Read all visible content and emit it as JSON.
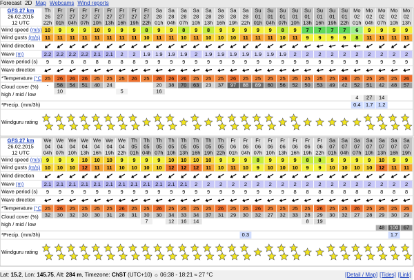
{
  "nav": {
    "items": [
      "Forecast",
      "2D",
      "Map",
      "Webcams",
      "Wind reports"
    ]
  },
  "labels": {
    "speed": {
      "text": "Wind speed ",
      "unit": "(m/s)"
    },
    "gusts": {
      "text": "Wind gusts ",
      "unit": "(m/s)"
    },
    "wind_dir": {
      "text": "Wind direction"
    },
    "wave": {
      "text": "Wave ",
      "unit": "(m)"
    },
    "period": {
      "text": "Wave period (s)"
    },
    "wave_dir": {
      "text": "Wave direction"
    },
    "temp": {
      "text": "*Temperature ",
      "unit": "(°C)"
    },
    "cloud": {
      "text": "Cloud cover (%)"
    },
    "cloud_sub": {
      "text": "high / mid / low"
    },
    "precip": {
      "text": "*Precip. (mm/3h)"
    },
    "rating": {
      "text": "Windguru rating"
    }
  },
  "speed_colors": {
    "6": "#9cf08c",
    "7": "#5fd85a",
    "8": "#c6ef3c",
    "9": "#f4f23e",
    "10": "#f8d436",
    "11": "#f7a533",
    "12": "#f27a2c"
  },
  "temp_colors": {
    "25": "#f2873e",
    "26": "#ee6f2c"
  },
  "tables": [
    {
      "model": "GFS 27 km",
      "date": "26.02.2015",
      "run": "12 UTC",
      "days": [
        "Th",
        "Fr",
        "Fr",
        "Fr",
        "Fr",
        "Fr",
        "Fr",
        "Fr",
        "Fr",
        "Sa",
        "Sa",
        "Sa",
        "Sa",
        "Sa",
        "Sa",
        "Sa",
        "Sa",
        "Su",
        "Su",
        "Su",
        "Su",
        "Su",
        "Su",
        "Su",
        "Su",
        "Mo",
        "Mo",
        "Mo",
        "Mo",
        "Mo"
      ],
      "dates": [
        "26",
        "27",
        "27",
        "27",
        "27",
        "27",
        "27",
        "27",
        "27",
        "28",
        "28",
        "28",
        "28",
        "28",
        "28",
        "28",
        "28",
        "01",
        "01",
        "01",
        "01",
        "01",
        "01",
        "01",
        "01",
        "02",
        "02",
        "02",
        "02",
        "02"
      ],
      "hours": [
        "22h",
        "01h",
        "04h",
        "07h",
        "10h",
        "13h",
        "16h",
        "19h",
        "22h",
        "01h",
        "04h",
        "07h",
        "10h",
        "13h",
        "16h",
        "19h",
        "22h",
        "01h",
        "04h",
        "07h",
        "10h",
        "13h",
        "16h",
        "19h",
        "22h",
        "01h",
        "04h",
        "07h",
        "10h",
        "13h"
      ],
      "speed": [
        10,
        9,
        9,
        9,
        10,
        9,
        9,
        9,
        8,
        9,
        9,
        8,
        9,
        8,
        9,
        9,
        9,
        9,
        9,
        8,
        9,
        7,
        7,
        7,
        7,
        6,
        9,
        9,
        9,
        9
      ],
      "gusts": [
        11,
        11,
        11,
        11,
        11,
        11,
        11,
        11,
        10,
        11,
        11,
        10,
        11,
        10,
        10,
        10,
        11,
        11,
        11,
        10,
        11,
        9,
        9,
        9,
        9,
        8,
        11,
        11,
        11,
        11
      ],
      "wind_dir": [
        55,
        55,
        60,
        60,
        55,
        55,
        60,
        60,
        65,
        60,
        60,
        65,
        60,
        65,
        60,
        60,
        55,
        55,
        60,
        65,
        60,
        70,
        75,
        75,
        80,
        85,
        60,
        55,
        55,
        60
      ],
      "wave": [
        2.2,
        2.2,
        2.2,
        2.2,
        2.1,
        2.1,
        2,
        2,
        1.9,
        1.9,
        1.9,
        1.9,
        2,
        1.9,
        1.9,
        1.9,
        1.9,
        1.9,
        1.9,
        1.9,
        2,
        2,
        2,
        2,
        2,
        2,
        2,
        2,
        2,
        2
      ],
      "period": [
        9,
        9,
        8,
        8,
        8,
        8,
        8,
        8,
        9,
        9,
        9,
        9,
        9,
        9,
        9,
        9,
        9,
        9,
        9,
        9,
        9,
        9,
        9,
        9,
        9,
        9,
        9,
        9,
        9,
        9
      ],
      "wave_dir": [
        70,
        70,
        70,
        75,
        75,
        75,
        75,
        75,
        80,
        80,
        80,
        80,
        80,
        80,
        80,
        80,
        80,
        80,
        80,
        80,
        80,
        80,
        80,
        80,
        80,
        80,
        80,
        80,
        80,
        80
      ],
      "temp": [
        25,
        26,
        26,
        26,
        25,
        25,
        25,
        26,
        25,
        26,
        26,
        26,
        25,
        25,
        25,
        26,
        25,
        25,
        25,
        25,
        25,
        25,
        25,
        25,
        26,
        25,
        25,
        25,
        25,
        26
      ],
      "cloud_high": [
        "-",
        58,
        54,
        51,
        40,
        24,
        null,
        null,
        null,
        20,
        38,
        70,
        63,
        23,
        37,
        97,
        88,
        89,
        60,
        56,
        52,
        50,
        53,
        49,
        42,
        52,
        51,
        42,
        48,
        57
      ],
      "cloud_mid": [
        null,
        10,
        null,
        null,
        null,
        null,
        5,
        null,
        null,
        16,
        null,
        null,
        null,
        null,
        null,
        null,
        null,
        null,
        null,
        null,
        null,
        null,
        null,
        null,
        null,
        null,
        null,
        null,
        null,
        null
      ],
      "cloud_low": [
        null,
        null,
        null,
        null,
        null,
        null,
        null,
        null,
        null,
        null,
        null,
        null,
        null,
        null,
        null,
        null,
        null,
        null,
        null,
        null,
        null,
        null,
        null,
        null,
        null,
        4,
        27,
        14,
        null,
        null
      ],
      "precip": [
        null,
        null,
        null,
        null,
        null,
        null,
        null,
        null,
        null,
        null,
        null,
        null,
        null,
        null,
        null,
        null,
        null,
        null,
        null,
        null,
        null,
        null,
        null,
        null,
        null,
        0.4,
        1.7,
        1.2,
        null,
        null
      ],
      "rating": [
        2,
        2,
        2,
        2,
        2,
        2,
        2,
        2,
        1,
        2,
        2,
        1,
        2,
        1,
        2,
        2,
        2,
        2,
        2,
        1,
        2,
        1,
        1,
        1,
        1,
        1,
        2,
        2,
        2,
        2
      ]
    },
    {
      "model": "GFS 27 km",
      "date": "26.02.2015",
      "run": "12 UTC",
      "days": [
        "We",
        "We",
        "We",
        "We",
        "We",
        "We",
        "We",
        "Th",
        "Th",
        "Th",
        "Th",
        "Th",
        "Th",
        "Th",
        "Th",
        "Fr",
        "Fr",
        "Fr",
        "Fr",
        "Fr",
        "Fr",
        "Fr",
        "Fr",
        "Sa",
        "Sa",
        "Sa",
        "Sa",
        "Sa",
        "Sa",
        "Sa"
      ],
      "dates": [
        "04",
        "04",
        "04",
        "04",
        "04",
        "04",
        "04",
        "05",
        "05",
        "05",
        "05",
        "05",
        "05",
        "05",
        "05",
        "06",
        "06",
        "06",
        "06",
        "06",
        "06",
        "06",
        "06",
        "07",
        "07",
        "07",
        "07",
        "07",
        "07",
        "07"
      ],
      "hours": [
        "04h",
        "07h",
        "10h",
        "13h",
        "16h",
        "19h",
        "22h",
        "01h",
        "04h",
        "07h",
        "10h",
        "13h",
        "16h",
        "19h",
        "22h",
        "01h",
        "04h",
        "07h",
        "10h",
        "13h",
        "16h",
        "19h",
        "22h",
        "01h",
        "04h",
        "07h",
        "10h",
        "13h",
        "16h",
        "19h"
      ],
      "speed": [
        9,
        9,
        9,
        10,
        10,
        10,
        9,
        9,
        9,
        9,
        10,
        10,
        10,
        10,
        9,
        9,
        9,
        8,
        9,
        9,
        9,
        8,
        8,
        9,
        9,
        9,
        9,
        10,
        9,
        9
      ],
      "gusts": [
        10,
        10,
        10,
        12,
        11,
        11,
        10,
        10,
        10,
        10,
        12,
        12,
        12,
        11,
        10,
        11,
        10,
        9,
        10,
        10,
        10,
        9,
        9,
        10,
        10,
        10,
        10,
        12,
        11,
        11
      ],
      "wind_dir": [
        60,
        60,
        60,
        55,
        55,
        55,
        60,
        60,
        60,
        60,
        55,
        55,
        55,
        60,
        60,
        60,
        60,
        65,
        60,
        60,
        60,
        65,
        65,
        60,
        60,
        60,
        60,
        55,
        60,
        60
      ],
      "wave": [
        2.1,
        2.1,
        2.1,
        2.1,
        2.1,
        2.1,
        2.1,
        2.1,
        2.1,
        2.1,
        2.1,
        2.1,
        2,
        2,
        2,
        2,
        2,
        2,
        2,
        2,
        2,
        2,
        2,
        2,
        2,
        2,
        2,
        2,
        2,
        2
      ],
      "period": [
        9,
        9,
        9,
        9,
        9,
        9,
        9,
        9,
        9,
        9,
        9,
        9,
        9,
        9,
        9,
        9,
        9,
        9,
        9,
        9,
        8,
        8,
        8,
        8,
        8,
        8,
        8,
        8,
        8,
        8
      ],
      "wave_dir": [
        75,
        75,
        75,
        75,
        75,
        75,
        75,
        75,
        75,
        75,
        75,
        75,
        75,
        75,
        75,
        75,
        75,
        75,
        75,
        75,
        75,
        75,
        75,
        75,
        75,
        75,
        75,
        75,
        75,
        75
      ],
      "temp": [
        25,
        26,
        25,
        25,
        25,
        25,
        26,
        25,
        25,
        26,
        25,
        25,
        25,
        25,
        26,
        25,
        25,
        26,
        25,
        25,
        25,
        25,
        26,
        25,
        25,
        26,
        25,
        25,
        25,
        25
      ],
      "cloud_high": [
        32,
        30,
        32,
        30,
        30,
        31,
        28,
        31,
        30,
        30,
        34,
        33,
        34,
        37,
        31,
        29,
        30,
        32,
        27,
        32,
        33,
        28,
        29,
        30,
        32,
        27,
        28,
        29,
        30,
        29
      ],
      "cloud_mid": [
        null,
        null,
        null,
        null,
        null,
        null,
        null,
        null,
        7,
        null,
        12,
        16,
        14,
        null,
        null,
        null,
        null,
        null,
        null,
        null,
        null,
        8,
        19,
        null,
        null,
        null,
        null,
        null,
        null,
        null
      ],
      "cloud_low": [
        null,
        null,
        null,
        null,
        null,
        null,
        null,
        null,
        null,
        null,
        null,
        null,
        null,
        null,
        null,
        null,
        null,
        null,
        null,
        null,
        null,
        null,
        null,
        null,
        null,
        null,
        null,
        48,
        100,
        67
      ],
      "precip": [
        null,
        null,
        null,
        null,
        null,
        null,
        null,
        null,
        null,
        null,
        null,
        null,
        null,
        null,
        null,
        null,
        0.3,
        null,
        null,
        null,
        null,
        null,
        null,
        null,
        null,
        null,
        null,
        null,
        1.7,
        null
      ],
      "rating": [
        2,
        2,
        2,
        2,
        2,
        2,
        2,
        2,
        2,
        2,
        2,
        2,
        2,
        2,
        2,
        2,
        2,
        1,
        2,
        2,
        2,
        1,
        1,
        2,
        2,
        2,
        2,
        2,
        2,
        2
      ]
    }
  ],
  "footer": {
    "segments": [
      {
        "text": "Lat: "
      },
      {
        "text": "15.2",
        "bold": true
      },
      {
        "text": ", Lon: "
      },
      {
        "text": "145.75",
        "bold": true
      },
      {
        "text": ", Alt: "
      },
      {
        "text": "284 m",
        "bold": true
      },
      {
        "text": ", Timezone: "
      },
      {
        "text": "ChST",
        "bold": true
      },
      {
        "text": " (UTC+10) ☼ 06:38 - 18:21 ≈ 27 °C"
      }
    ],
    "links": [
      "[Detail / Map]",
      "[Tides]",
      "[Link]"
    ]
  }
}
